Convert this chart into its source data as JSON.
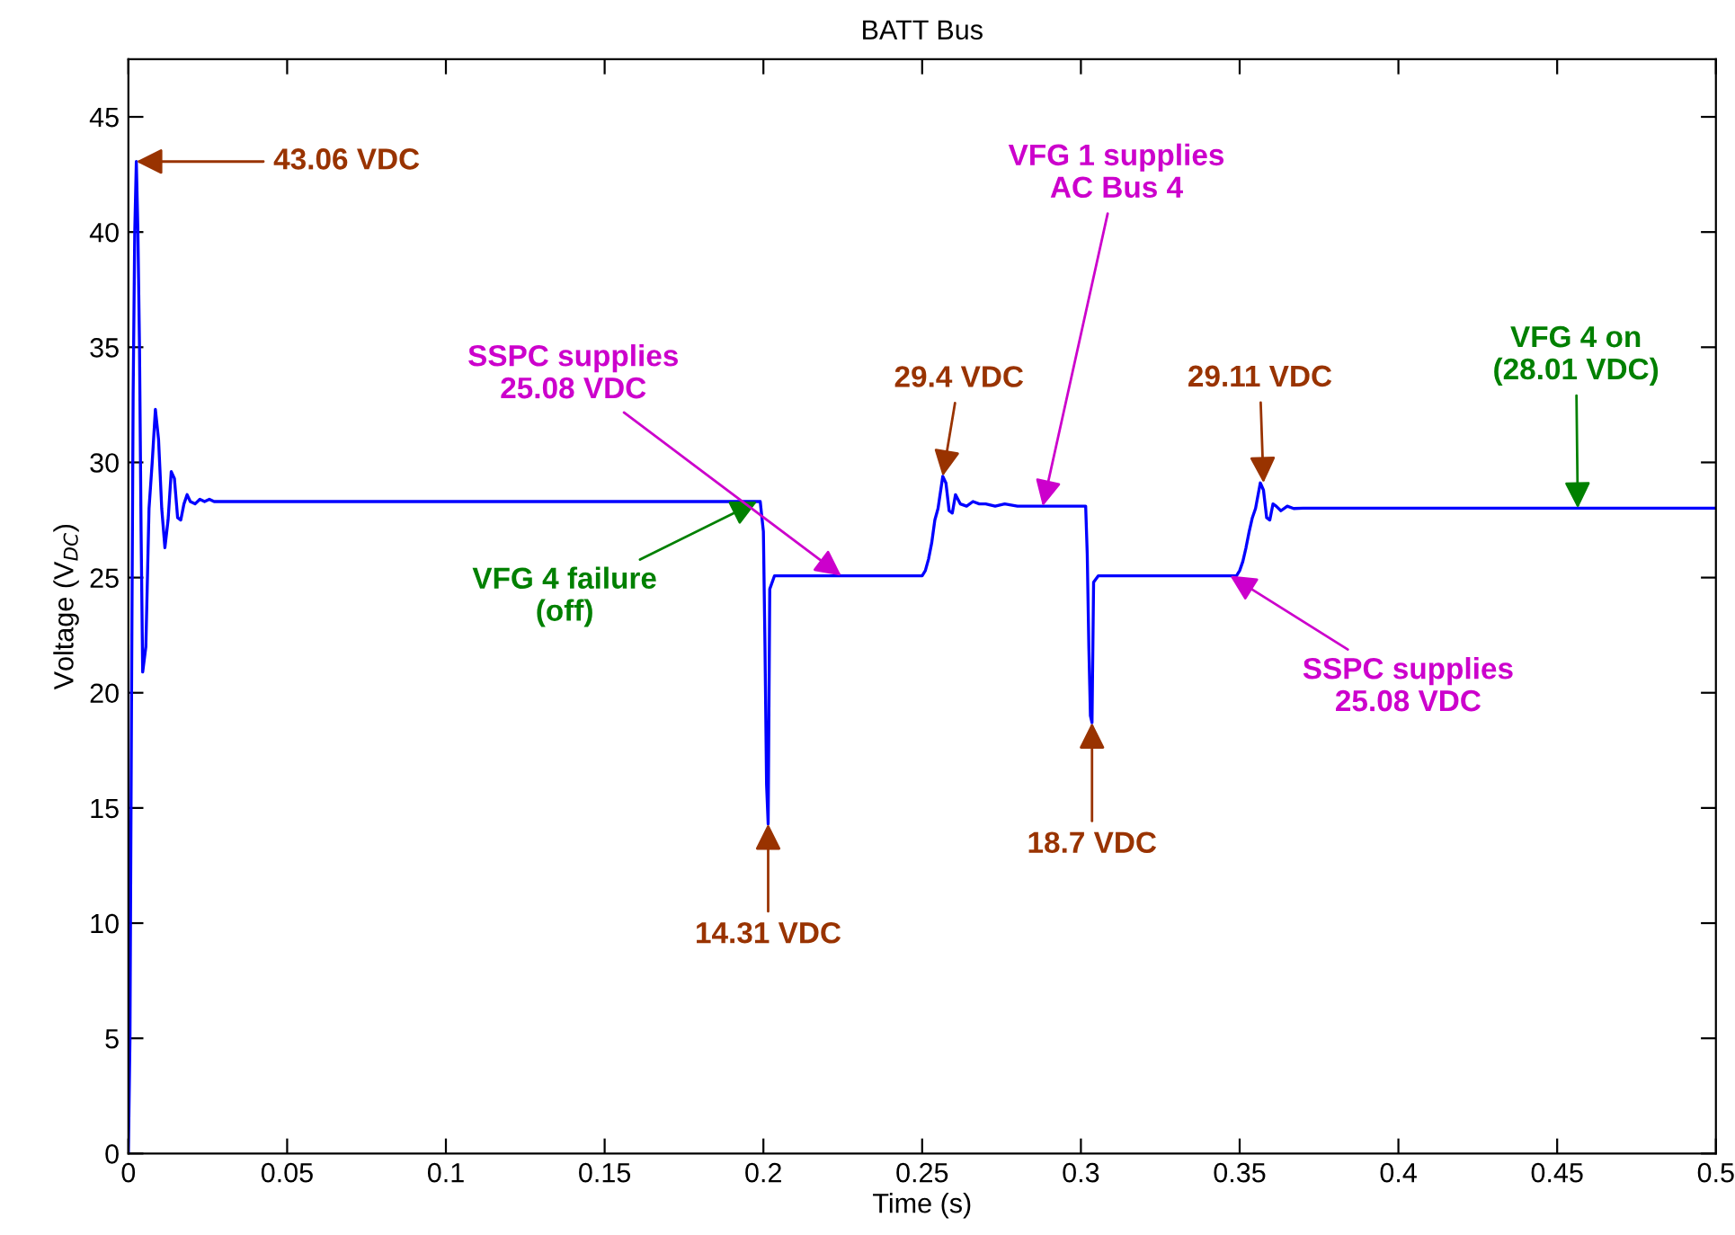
{
  "chart_data": {
    "type": "line",
    "title": "BATT Bus",
    "xlabel": "Time (s)",
    "ylabel": "Voltage (V$_{DC}$)",
    "xlim": [
      0,
      0.5
    ],
    "xticks": [
      0,
      0.05,
      0.1,
      0.15,
      0.2,
      0.25,
      0.3,
      0.35,
      0.4,
      0.45,
      0.5
    ],
    "ylim": [
      0,
      47.5
    ],
    "yticks": [
      0,
      5,
      10,
      15,
      20,
      25,
      30,
      35,
      40,
      45
    ],
    "grid": false,
    "legend": false,
    "marker": "none",
    "line_style": "solid",
    "series": [
      {
        "color": "#0000ff",
        "x": [
          0,
          0.0005,
          0.001,
          0.0015,
          0.002,
          0.0025,
          0.003,
          0.0035,
          0.004,
          0.0045,
          0.0055,
          0.0065,
          0.0075,
          0.0085,
          0.0095,
          0.0105,
          0.0115,
          0.0125,
          0.0135,
          0.0145,
          0.0155,
          0.0165,
          0.0175,
          0.0185,
          0.0195,
          0.021,
          0.0225,
          0.024,
          0.0255,
          0.027,
          0.029,
          0.03,
          0.1,
          0.199,
          0.2,
          0.2005,
          0.201,
          0.2015,
          0.202,
          0.2035,
          0.25,
          0.251,
          0.252,
          0.253,
          0.254,
          0.255,
          0.2565,
          0.2575,
          0.2585,
          0.2595,
          0.2605,
          0.262,
          0.264,
          0.266,
          0.268,
          0.27,
          0.273,
          0.276,
          0.28,
          0.285,
          0.29,
          0.295,
          0.3015,
          0.302,
          0.3025,
          0.303,
          0.3035,
          0.304,
          0.3055,
          0.349,
          0.35,
          0.351,
          0.352,
          0.353,
          0.354,
          0.355,
          0.3565,
          0.3575,
          0.3585,
          0.3595,
          0.3605,
          0.3615,
          0.363,
          0.365,
          0.367,
          0.37,
          0.375,
          0.4,
          0.5
        ],
        "values": [
          0,
          5,
          20,
          33,
          40,
          43.06,
          40,
          35,
          27,
          20.9,
          22,
          28,
          30,
          32.3,
          31,
          28,
          26.3,
          27.5,
          29.6,
          29.3,
          27.6,
          27.5,
          28.2,
          28.6,
          28.3,
          28.2,
          28.4,
          28.3,
          28.4,
          28.3,
          28.3,
          28.3,
          28.3,
          28.3,
          27,
          22,
          16,
          14.31,
          24.5,
          25.08,
          25.08,
          25.3,
          25.8,
          26.5,
          27.5,
          28,
          29.4,
          29.1,
          27.9,
          27.8,
          28.6,
          28.2,
          28.1,
          28.3,
          28.2,
          28.2,
          28.1,
          28.2,
          28.1,
          28.1,
          28.1,
          28.1,
          28.1,
          26,
          22,
          19,
          18.7,
          24.8,
          25.08,
          25.08,
          25.3,
          25.7,
          26.3,
          27,
          27.6,
          28,
          29.11,
          28.8,
          27.6,
          27.5,
          28.2,
          28.1,
          27.9,
          28.1,
          28,
          28.01,
          28.01,
          28.01,
          28.01
        ]
      }
    ],
    "annotations": [
      {
        "text": "43.06 VDC",
        "x": 0.0025,
        "y": 43.06
      },
      {
        "text": "14.31 VDC",
        "x": 0.2015,
        "y": 14.31
      },
      {
        "text": "18.7 VDC",
        "x": 0.3035,
        "y": 18.7
      },
      {
        "text": "29.4 VDC",
        "x": 0.2565,
        "y": 29.4
      },
      {
        "text": "29.11 VDC",
        "x": 0.3575,
        "y": 29.11
      },
      {
        "text": "VFG 4 on\n(28.01 VDC)",
        "x": 0.4565,
        "y": 28.01
      },
      {
        "text": "VFG 4 failure\n(off)",
        "x": 0.198,
        "y": 28.3
      },
      {
        "text": "SSPC supplies\n25.08 VDC",
        "x": 0.2245,
        "y": 25.08
      },
      {
        "text": "VFG 1 supplies\nAC Bus 4",
        "x": 0.288,
        "y": 28.1
      },
      {
        "text": "SSPC supplies\n25.08 VDC",
        "x": 0.347,
        "y": 25.08
      }
    ]
  }
}
